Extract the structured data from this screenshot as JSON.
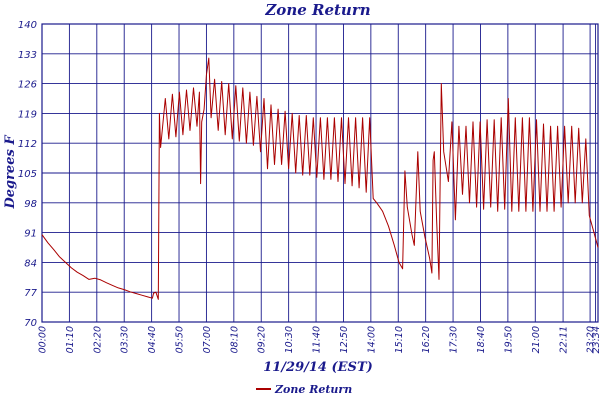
{
  "chart_data": {
    "type": "line",
    "title": "Zone Return",
    "xlabel": "11/29/14 (EST)",
    "ylabel": "Degrees F",
    "ylim": [
      70,
      140
    ],
    "xlim_hours": [
      0,
      23.67
    ],
    "yticks": [
      70,
      77,
      84,
      91,
      98,
      105,
      112,
      119,
      126,
      133,
      140
    ],
    "xticks": [
      {
        "label": "00:00",
        "h": 0
      },
      {
        "label": "01:10",
        "h": 1.1667
      },
      {
        "label": "02:20",
        "h": 2.3333
      },
      {
        "label": "03:30",
        "h": 3.5
      },
      {
        "label": "04:40",
        "h": 4.6667
      },
      {
        "label": "05:50",
        "h": 5.8333
      },
      {
        "label": "07:00",
        "h": 7.0
      },
      {
        "label": "08:10",
        "h": 8.1667
      },
      {
        "label": "09:20",
        "h": 9.3333
      },
      {
        "label": "10:30",
        "h": 10.5
      },
      {
        "label": "11:40",
        "h": 11.6667
      },
      {
        "label": "12:50",
        "h": 12.8333
      },
      {
        "label": "14:00",
        "h": 14.0
      },
      {
        "label": "15:10",
        "h": 15.1667
      },
      {
        "label": "16:20",
        "h": 16.3333
      },
      {
        "label": "17:30",
        "h": 17.5
      },
      {
        "label": "18:40",
        "h": 18.6667
      },
      {
        "label": "19:50",
        "h": 19.8333
      },
      {
        "label": "21:00",
        "h": 21.0
      },
      {
        "label": "22:11",
        "h": 22.1833
      },
      {
        "label": "23:20",
        "h": 23.3333
      },
      {
        "label": "23:34",
        "h": 23.5667
      }
    ],
    "grid": true,
    "legend": "bottom-left",
    "series": [
      {
        "name": "Zone Return",
        "color": "#aa0000",
        "points": [
          [
            0.0,
            90.5
          ],
          [
            0.25,
            88.6
          ],
          [
            0.5,
            87.0
          ],
          [
            0.75,
            85.3
          ],
          [
            1.0,
            84.0
          ],
          [
            1.25,
            82.7
          ],
          [
            1.5,
            81.7
          ],
          [
            1.75,
            80.9
          ],
          [
            2.0,
            80.0
          ],
          [
            2.25,
            80.3
          ],
          [
            2.5,
            79.9
          ],
          [
            2.75,
            79.2
          ],
          [
            3.0,
            78.6
          ],
          [
            3.25,
            78.0
          ],
          [
            3.5,
            77.6
          ],
          [
            3.75,
            77.1
          ],
          [
            4.0,
            76.7
          ],
          [
            4.25,
            76.3
          ],
          [
            4.5,
            75.9
          ],
          [
            4.7,
            75.6
          ],
          [
            4.75,
            76.8
          ],
          [
            4.85,
            77.0
          ],
          [
            4.95,
            75.3
          ],
          [
            5.0,
            119.0
          ],
          [
            5.05,
            111.0
          ],
          [
            5.25,
            122.5
          ],
          [
            5.4,
            113.0
          ],
          [
            5.55,
            123.5
          ],
          [
            5.7,
            113.5
          ],
          [
            5.85,
            124.0
          ],
          [
            6.0,
            114.0
          ],
          [
            6.15,
            124.5
          ],
          [
            6.3,
            115.0
          ],
          [
            6.45,
            125.0
          ],
          [
            6.6,
            116.0
          ],
          [
            6.7,
            124.0
          ],
          [
            6.75,
            102.5
          ],
          [
            6.8,
            117.0
          ],
          [
            6.9,
            120.0
          ],
          [
            7.0,
            128.0
          ],
          [
            7.1,
            132.0
          ],
          [
            7.2,
            118.0
          ],
          [
            7.35,
            127.0
          ],
          [
            7.5,
            115.0
          ],
          [
            7.65,
            126.5
          ],
          [
            7.8,
            114.0
          ],
          [
            7.95,
            126.0
          ],
          [
            8.1,
            113.0
          ],
          [
            8.25,
            125.5
          ],
          [
            8.4,
            112.5
          ],
          [
            8.55,
            125.0
          ],
          [
            8.7,
            112.0
          ],
          [
            8.85,
            124.0
          ],
          [
            9.0,
            111.5
          ],
          [
            9.15,
            123.0
          ],
          [
            9.3,
            110.0
          ],
          [
            9.45,
            122.5
          ],
          [
            9.6,
            106.0
          ],
          [
            9.75,
            121.0
          ],
          [
            9.9,
            107.0
          ],
          [
            10.05,
            120.0
          ],
          [
            10.2,
            107.0
          ],
          [
            10.35,
            119.5
          ],
          [
            10.5,
            106.0
          ],
          [
            10.65,
            119.0
          ],
          [
            10.8,
            105.0
          ],
          [
            10.95,
            118.5
          ],
          [
            11.1,
            104.5
          ],
          [
            11.25,
            118.5
          ],
          [
            11.4,
            104.5
          ],
          [
            11.55,
            118.0
          ],
          [
            11.7,
            104.0
          ],
          [
            11.85,
            118.0
          ],
          [
            12.0,
            103.5
          ],
          [
            12.15,
            118.0
          ],
          [
            12.3,
            103.5
          ],
          [
            12.45,
            118.0
          ],
          [
            12.6,
            103.0
          ],
          [
            12.75,
            118.0
          ],
          [
            12.9,
            102.5
          ],
          [
            13.05,
            118.0
          ],
          [
            13.2,
            102.0
          ],
          [
            13.35,
            118.0
          ],
          [
            13.5,
            101.5
          ],
          [
            13.65,
            118.0
          ],
          [
            13.8,
            100.5
          ],
          [
            13.95,
            118.0
          ],
          [
            14.1,
            99.0
          ],
          [
            14.25,
            98.0
          ],
          [
            14.5,
            96.0
          ],
          [
            14.75,
            92.5
          ],
          [
            15.0,
            88.0
          ],
          [
            15.2,
            84.0
          ],
          [
            15.35,
            82.5
          ],
          [
            15.45,
            105.5
          ],
          [
            15.55,
            97.0
          ],
          [
            15.75,
            90.5
          ],
          [
            15.85,
            88.0
          ],
          [
            16.0,
            110.0
          ],
          [
            16.1,
            96.0
          ],
          [
            16.3,
            90.0
          ],
          [
            16.5,
            85.0
          ],
          [
            16.6,
            81.5
          ],
          [
            16.65,
            108.0
          ],
          [
            16.7,
            110.0
          ],
          [
            16.8,
            94.0
          ],
          [
            16.9,
            80.0
          ],
          [
            17.0,
            126.0
          ],
          [
            17.1,
            110.0
          ],
          [
            17.3,
            103.0
          ],
          [
            17.45,
            117.0
          ],
          [
            17.6,
            94.0
          ],
          [
            17.75,
            116.0
          ],
          [
            17.9,
            100.0
          ],
          [
            18.05,
            116.0
          ],
          [
            18.2,
            98.0
          ],
          [
            18.35,
            117.0
          ],
          [
            18.5,
            97.0
          ],
          [
            18.65,
            117.0
          ],
          [
            18.8,
            96.5
          ],
          [
            18.95,
            117.5
          ],
          [
            19.1,
            97.0
          ],
          [
            19.25,
            117.5
          ],
          [
            19.4,
            96.0
          ],
          [
            19.55,
            118.0
          ],
          [
            19.7,
            96.5
          ],
          [
            19.85,
            122.5
          ],
          [
            20.0,
            96.0
          ],
          [
            20.15,
            118.0
          ],
          [
            20.3,
            96.0
          ],
          [
            20.45,
            118.0
          ],
          [
            20.6,
            96.0
          ],
          [
            20.75,
            118.0
          ],
          [
            20.9,
            96.0
          ],
          [
            21.05,
            117.5
          ],
          [
            21.2,
            96.0
          ],
          [
            21.35,
            116.5
          ],
          [
            21.5,
            96.0
          ],
          [
            21.65,
            116.0
          ],
          [
            21.8,
            96.0
          ],
          [
            21.95,
            116.0
          ],
          [
            22.1,
            97.0
          ],
          [
            22.25,
            116.0
          ],
          [
            22.4,
            98.0
          ],
          [
            22.55,
            116.0
          ],
          [
            22.7,
            98.0
          ],
          [
            22.85,
            115.5
          ],
          [
            23.0,
            98.0
          ],
          [
            23.15,
            113.0
          ],
          [
            23.3,
            95.0
          ],
          [
            23.5,
            91.0
          ],
          [
            23.67,
            87.5
          ]
        ]
      }
    ]
  }
}
